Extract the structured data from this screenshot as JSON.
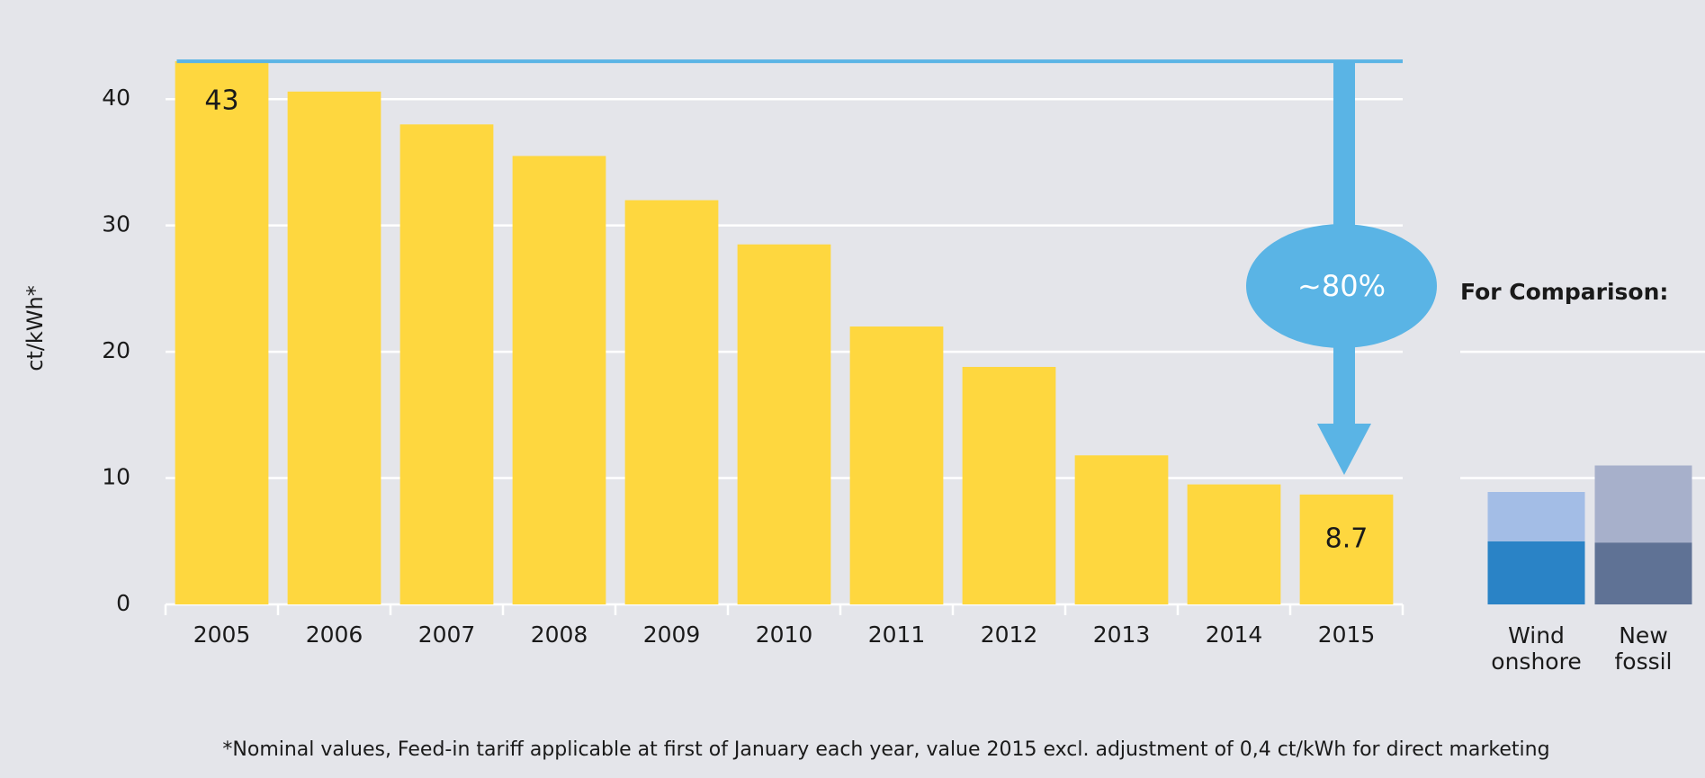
{
  "chart_data": [
    {
      "type": "bar",
      "ylabel": "ct/kWh*",
      "categories": [
        "2005",
        "2006",
        "2007",
        "2008",
        "2009",
        "2010",
        "2011",
        "2012",
        "2013",
        "2014",
        "2015"
      ],
      "values": [
        43,
        40.6,
        38,
        35.5,
        32,
        28.5,
        22,
        18.8,
        11.8,
        9.5,
        8.7
      ],
      "value_labels": [
        "43",
        null,
        null,
        null,
        null,
        null,
        null,
        null,
        null,
        null,
        "8.7"
      ],
      "color": "#fed73f",
      "ylim": [
        0,
        45
      ],
      "yticks": [
        0,
        10,
        20,
        30,
        40
      ],
      "grid": true,
      "annotation": "~80%",
      "footnote": "*Nominal values, Feed-in tariff applicable at first of January each year, value 2015 excl. adjustment of 0,4 ct/kWh for direct marketing"
    },
    {
      "type": "stacked_bar",
      "title": "For Comparison:",
      "categories": [
        "Wind onshore",
        "New fossil"
      ],
      "series": [
        {
          "values": [
            5,
            4.9
          ],
          "colors": [
            "#2a83c6",
            "#5f7295"
          ]
        },
        {
          "values": [
            3.9,
            6.1
          ],
          "colors": [
            "#a3bde6",
            "#a7b0cb"
          ]
        }
      ],
      "ylim": [
        0,
        45
      ],
      "yticks": [
        10,
        20
      ],
      "grid": true
    }
  ]
}
